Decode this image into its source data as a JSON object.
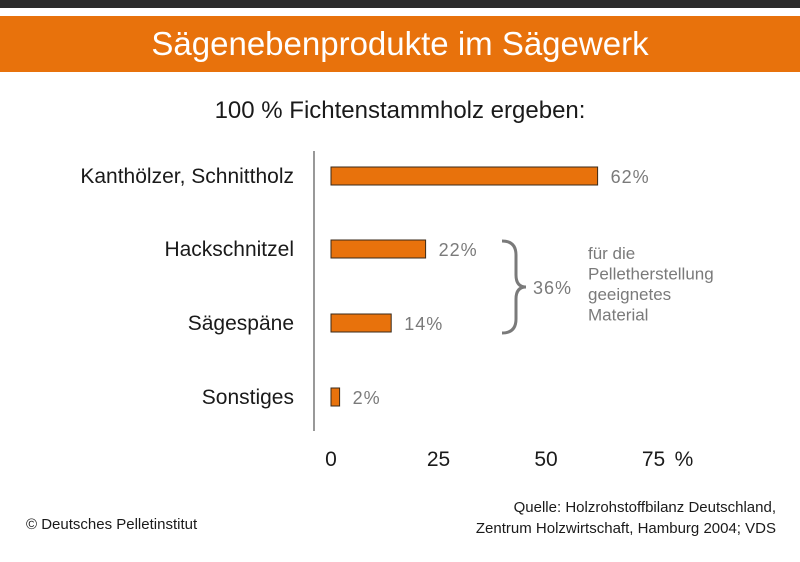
{
  "title": "Sägenebenprodukte im Sägewerk",
  "subtitle": "100 % Fichtenstammholz ergeben:",
  "colors": {
    "bar": "#e8720c",
    "banner": "#e8720c",
    "value_text": "#7a7a7a",
    "axis": "#555555"
  },
  "chart_data": {
    "type": "bar",
    "orientation": "horizontal",
    "categories": [
      "Kanthölzer, Schnittholz",
      "Hackschnitzel",
      "Sägespäne",
      "Sonstiges"
    ],
    "values": [
      62,
      22,
      14,
      2
    ],
    "value_labels": [
      "62%",
      "22%",
      "14%",
      "2%"
    ],
    "xlim": [
      0,
      75
    ],
    "xticks": [
      "0",
      "25",
      "50",
      "75"
    ],
    "xunit": "%",
    "grid": false,
    "annotation": {
      "bracket_categories": [
        "Hackschnitzel",
        "Sägespäne"
      ],
      "sum_label": "36%",
      "note_lines": [
        "für die",
        "Pelletherstellung",
        "geeignetes",
        "Material"
      ]
    }
  },
  "footer": {
    "copyright": "© Deutsches Pelletinstitut",
    "source_lines": [
      "Quelle: Holzrohstoffbilanz Deutschland,",
      "Zentrum Holzwirtschaft, Hamburg 2004; VDS"
    ]
  }
}
